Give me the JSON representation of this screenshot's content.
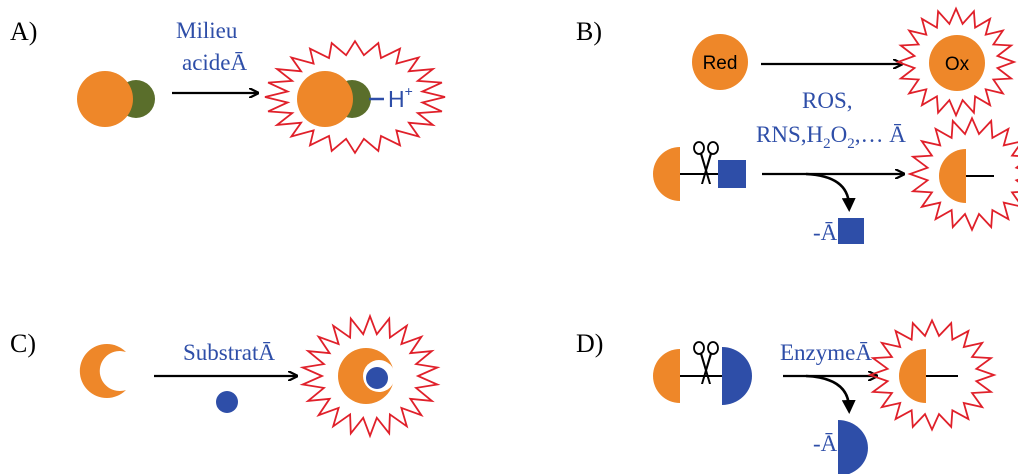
{
  "colors": {
    "orange": "#EE8729",
    "olive": "#5A6E2B",
    "blue": "#2E4EA8",
    "red": "#E0202A",
    "black": "#000000"
  },
  "panels": {
    "a": {
      "label": "A)",
      "reagent_line1": "Milieu",
      "reagent_line2": "acideĀ",
      "product_tag": "H",
      "product_charge": "+"
    },
    "b": {
      "label": "B)",
      "reduced": "Red",
      "oxidized": "Ox",
      "reagent_line1": "ROS,",
      "reagent_line2_prefix": "RNS,H",
      "reagent_sub1": "2",
      "reagent_mid": "O",
      "reagent_sub2": "2",
      "reagent_suffix": ",… Ā",
      "released_prefix": "-Ā"
    },
    "c": {
      "label": "C)",
      "reagent": "SubstratĀ"
    },
    "d": {
      "label": "D)",
      "reagent": "EnzymeĀ",
      "released_prefix": "-Ā"
    }
  },
  "icons": [
    "burst-star-icon",
    "scissors-icon",
    "curved-arrow-icon"
  ]
}
